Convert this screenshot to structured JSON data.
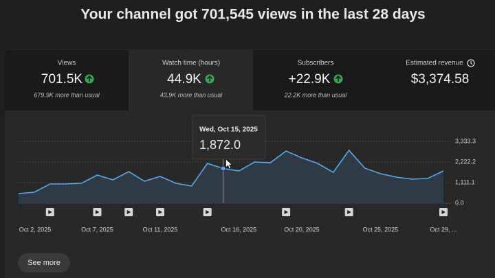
{
  "header": {
    "title": "Your channel got 701,545 views in the last 28 days"
  },
  "cards": [
    {
      "label": "Views",
      "value": "701.5K",
      "note": "679.9K more than usual"
    },
    {
      "label": "Watch time (hours)",
      "value": "44.9K",
      "note": "43.9K more than usual"
    },
    {
      "label": "Subscribers",
      "value": "+22.9K",
      "note": "22.2K more than usual"
    },
    {
      "label": "Estimated revenue",
      "value": "$3,374.58"
    }
  ],
  "chart_data": {
    "type": "line",
    "color": "#5aa9e6",
    "categories": [
      "Oct 2, 2025",
      null,
      null,
      null,
      null,
      "Oct 7, 2025",
      null,
      null,
      null,
      "Oct 11, 2025",
      null,
      null,
      null,
      null,
      "Oct 16, 2025",
      null,
      null,
      null,
      "Oct 20, 2025",
      null,
      null,
      null,
      null,
      "Oct 25, 2025",
      null,
      null,
      null,
      "Oct 29, ..."
    ],
    "values": [
      518,
      592,
      1037,
      1037,
      1074,
      1518,
      1259,
      1704,
      1185,
      1444,
      1074,
      926,
      2148,
      1872,
      1740,
      2222,
      2185,
      2815,
      2444,
      2148,
      1666,
      2852,
      1889,
      1593,
      1407,
      1296,
      1333,
      1740
    ],
    "ylim": [
      0,
      3333.3
    ],
    "yticks": [
      {
        "value": 0,
        "label": "0.0"
      },
      {
        "value": 1111.1,
        "label": "1,111.1"
      },
      {
        "value": 2222.2,
        "label": "2,222.2"
      },
      {
        "value": 3333.3,
        "label": "3,333.3"
      }
    ],
    "grid": true,
    "tooltip": {
      "title": "Wed, Oct 15, 2025",
      "label": "1,872.0"
    }
  },
  "button": {
    "label": "See more"
  }
}
